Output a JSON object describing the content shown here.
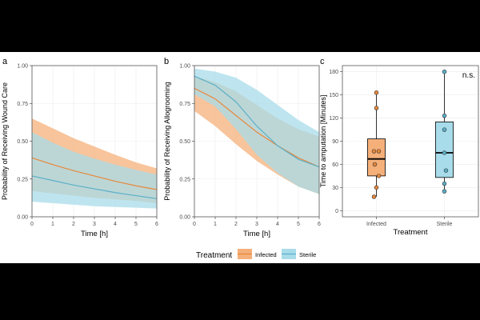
{
  "colors": {
    "infected": "#e8883a",
    "infected_fill": "#f5b07a",
    "sterile": "#5bb0c8",
    "sterile_fill": "#a8dcea",
    "overlap": "#c2c7a4"
  },
  "legend": {
    "title": "Treatment",
    "entries": [
      {
        "name": "Infected",
        "color": "#f5b07a",
        "line": "#e8883a"
      },
      {
        "name": "Sterile",
        "color": "#a8dcea",
        "line": "#5bb0c8"
      }
    ]
  },
  "chart_data": [
    {
      "panel": "a",
      "type": "line",
      "title": "",
      "xlabel": "Time [h]",
      "ylabel": "Probability of Receiving Wound Care",
      "xlim": [
        0,
        6
      ],
      "ylim": [
        0,
        1
      ],
      "xticks": [
        0,
        1,
        2,
        3,
        4,
        5,
        6
      ],
      "yticks": [
        0,
        0.25,
        0.5,
        0.75,
        1
      ],
      "ytick_labels": [
        "0.00",
        "0.25",
        "0.50",
        "0.75",
        "1.00"
      ],
      "x": [
        0,
        1,
        2,
        3,
        4,
        5,
        6
      ],
      "series": [
        {
          "name": "Infected",
          "values": [
            0.39,
            0.345,
            0.305,
            0.27,
            0.235,
            0.205,
            0.18
          ],
          "lower": [
            0.17,
            0.155,
            0.14,
            0.125,
            0.115,
            0.105,
            0.09
          ],
          "upper": [
            0.65,
            0.585,
            0.52,
            0.465,
            0.41,
            0.36,
            0.32
          ]
        },
        {
          "name": "Sterile",
          "values": [
            0.27,
            0.24,
            0.21,
            0.185,
            0.16,
            0.14,
            0.12
          ],
          "lower": [
            0.1,
            0.09,
            0.08,
            0.07,
            0.065,
            0.06,
            0.055
          ],
          "upper": [
            0.56,
            0.49,
            0.43,
            0.385,
            0.345,
            0.31,
            0.28
          ]
        }
      ]
    },
    {
      "panel": "b",
      "type": "line",
      "title": "",
      "xlabel": "Time [h]",
      "ylabel": "Probability of Receiving Allogrooming",
      "xlim": [
        0,
        6
      ],
      "ylim": [
        0,
        1
      ],
      "xticks": [
        0,
        1,
        2,
        3,
        4,
        5,
        6
      ],
      "yticks": [
        0,
        0.25,
        0.5,
        0.75,
        1
      ],
      "ytick_labels": [
        "0.00",
        "0.25",
        "0.50",
        "0.75",
        "1.00"
      ],
      "x": [
        0,
        1,
        2,
        3,
        4,
        5,
        6
      ],
      "series": [
        {
          "name": "Infected",
          "values": [
            0.85,
            0.78,
            0.67,
            0.56,
            0.47,
            0.39,
            0.33
          ],
          "lower": [
            0.7,
            0.6,
            0.48,
            0.37,
            0.28,
            0.2,
            0.15
          ],
          "upper": [
            0.93,
            0.89,
            0.83,
            0.74,
            0.65,
            0.58,
            0.53
          ]
        },
        {
          "name": "Sterile",
          "values": [
            0.93,
            0.87,
            0.76,
            0.6,
            0.47,
            0.38,
            0.33
          ],
          "lower": [
            0.81,
            0.73,
            0.58,
            0.41,
            0.29,
            0.2,
            0.15
          ],
          "upper": [
            0.98,
            0.96,
            0.92,
            0.84,
            0.74,
            0.64,
            0.56
          ]
        }
      ]
    },
    {
      "panel": "c",
      "type": "box",
      "title": "",
      "xlabel": "Treatment",
      "ylabel": "Time to amputation [Minutes]",
      "ylim": [
        -8,
        188
      ],
      "yticks": [
        0,
        30,
        60,
        90,
        120,
        150,
        180
      ],
      "ytick_labels": [
        "0",
        "30",
        "60",
        "90",
        "120",
        "150",
        "180"
      ],
      "categories": [
        "Infected",
        "Sterile"
      ],
      "annotation": "n.s.",
      "boxes": [
        {
          "name": "Infected",
          "min": 18,
          "q1": 45,
          "median": 67,
          "q3": 93,
          "max": 153,
          "points": [
            18,
            30,
            45,
            60,
            77,
            77,
            133,
            153
          ]
        },
        {
          "name": "Sterile",
          "min": 25,
          "q1": 43,
          "median": 75,
          "q3": 115,
          "max": 180,
          "points": [
            25,
            35,
            52,
            75,
            105,
            123,
            180
          ]
        }
      ]
    }
  ]
}
